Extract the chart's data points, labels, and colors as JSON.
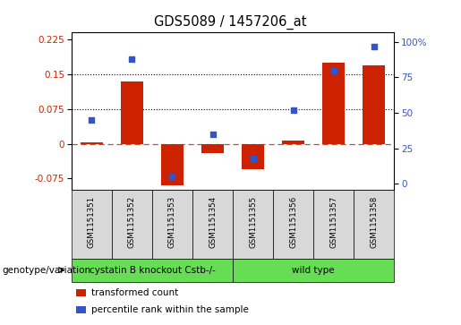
{
  "title": "GDS5089 / 1457206_at",
  "samples": [
    "GSM1151351",
    "GSM1151352",
    "GSM1151353",
    "GSM1151354",
    "GSM1151355",
    "GSM1151356",
    "GSM1151357",
    "GSM1151358"
  ],
  "transformed_count": [
    0.003,
    0.135,
    -0.09,
    -0.02,
    -0.055,
    0.007,
    0.175,
    0.17
  ],
  "percentile_rank": [
    45,
    88,
    5,
    35,
    18,
    52,
    80,
    97
  ],
  "groups": [
    {
      "label": "cystatin B knockout Cstb-/-",
      "n_samples": 4
    },
    {
      "label": "wild type",
      "n_samples": 4
    }
  ],
  "group_label_prefix": "genotype/variation",
  "ylim_left": [
    -0.1,
    0.24
  ],
  "ylim_right": [
    -4.44,
    106.67
  ],
  "yticks_left": [
    -0.075,
    0.0,
    0.075,
    0.15,
    0.225
  ],
  "yticks_right": [
    0,
    25,
    50,
    75,
    100
  ],
  "hlines": [
    0.075,
    0.15
  ],
  "bar_color": "#cc2200",
  "dot_color": "#3355cc",
  "zero_line_color": "#cc4444",
  "bg_color": "#d8d8d8",
  "green_color": "#66dd55",
  "legend_items": [
    "transformed count",
    "percentile rank within the sample"
  ]
}
